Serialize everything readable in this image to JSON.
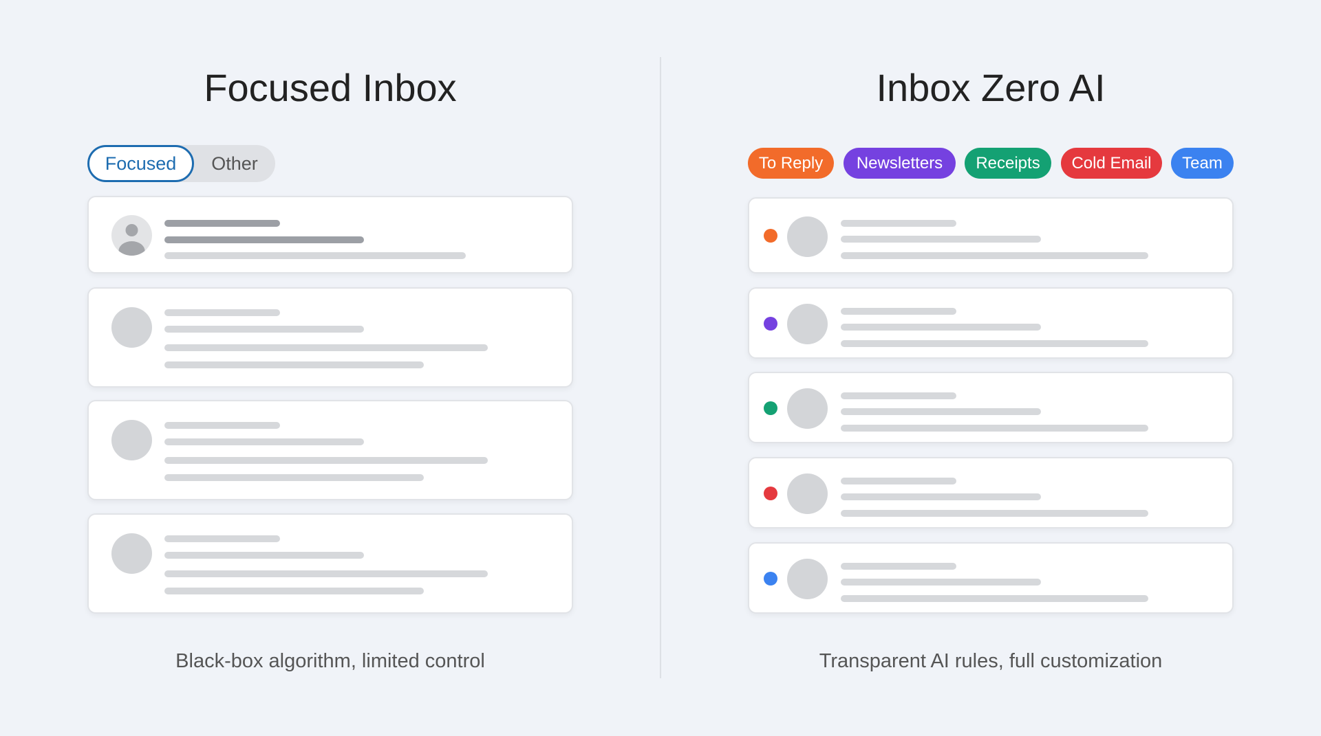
{
  "left": {
    "title": "Focused Inbox",
    "toggle": {
      "focused": "Focused",
      "other": "Other",
      "selected": "Focused"
    },
    "caption": "Black-box algorithm, limited control"
  },
  "right": {
    "title": "Inbox Zero AI",
    "caption": "Transparent AI rules, full customization",
    "chips": [
      {
        "label": "To Reply",
        "color": "#f26b2a"
      },
      {
        "label": "Newsletters",
        "color": "#7541e0"
      },
      {
        "label": "Receipts",
        "color": "#14a173"
      },
      {
        "label": "Cold Email",
        "color": "#e5393e"
      },
      {
        "label": "Team",
        "color": "#3b82f0"
      }
    ]
  },
  "colors": {
    "accent": "#1d6cb0",
    "background": "#f0f3f8"
  }
}
